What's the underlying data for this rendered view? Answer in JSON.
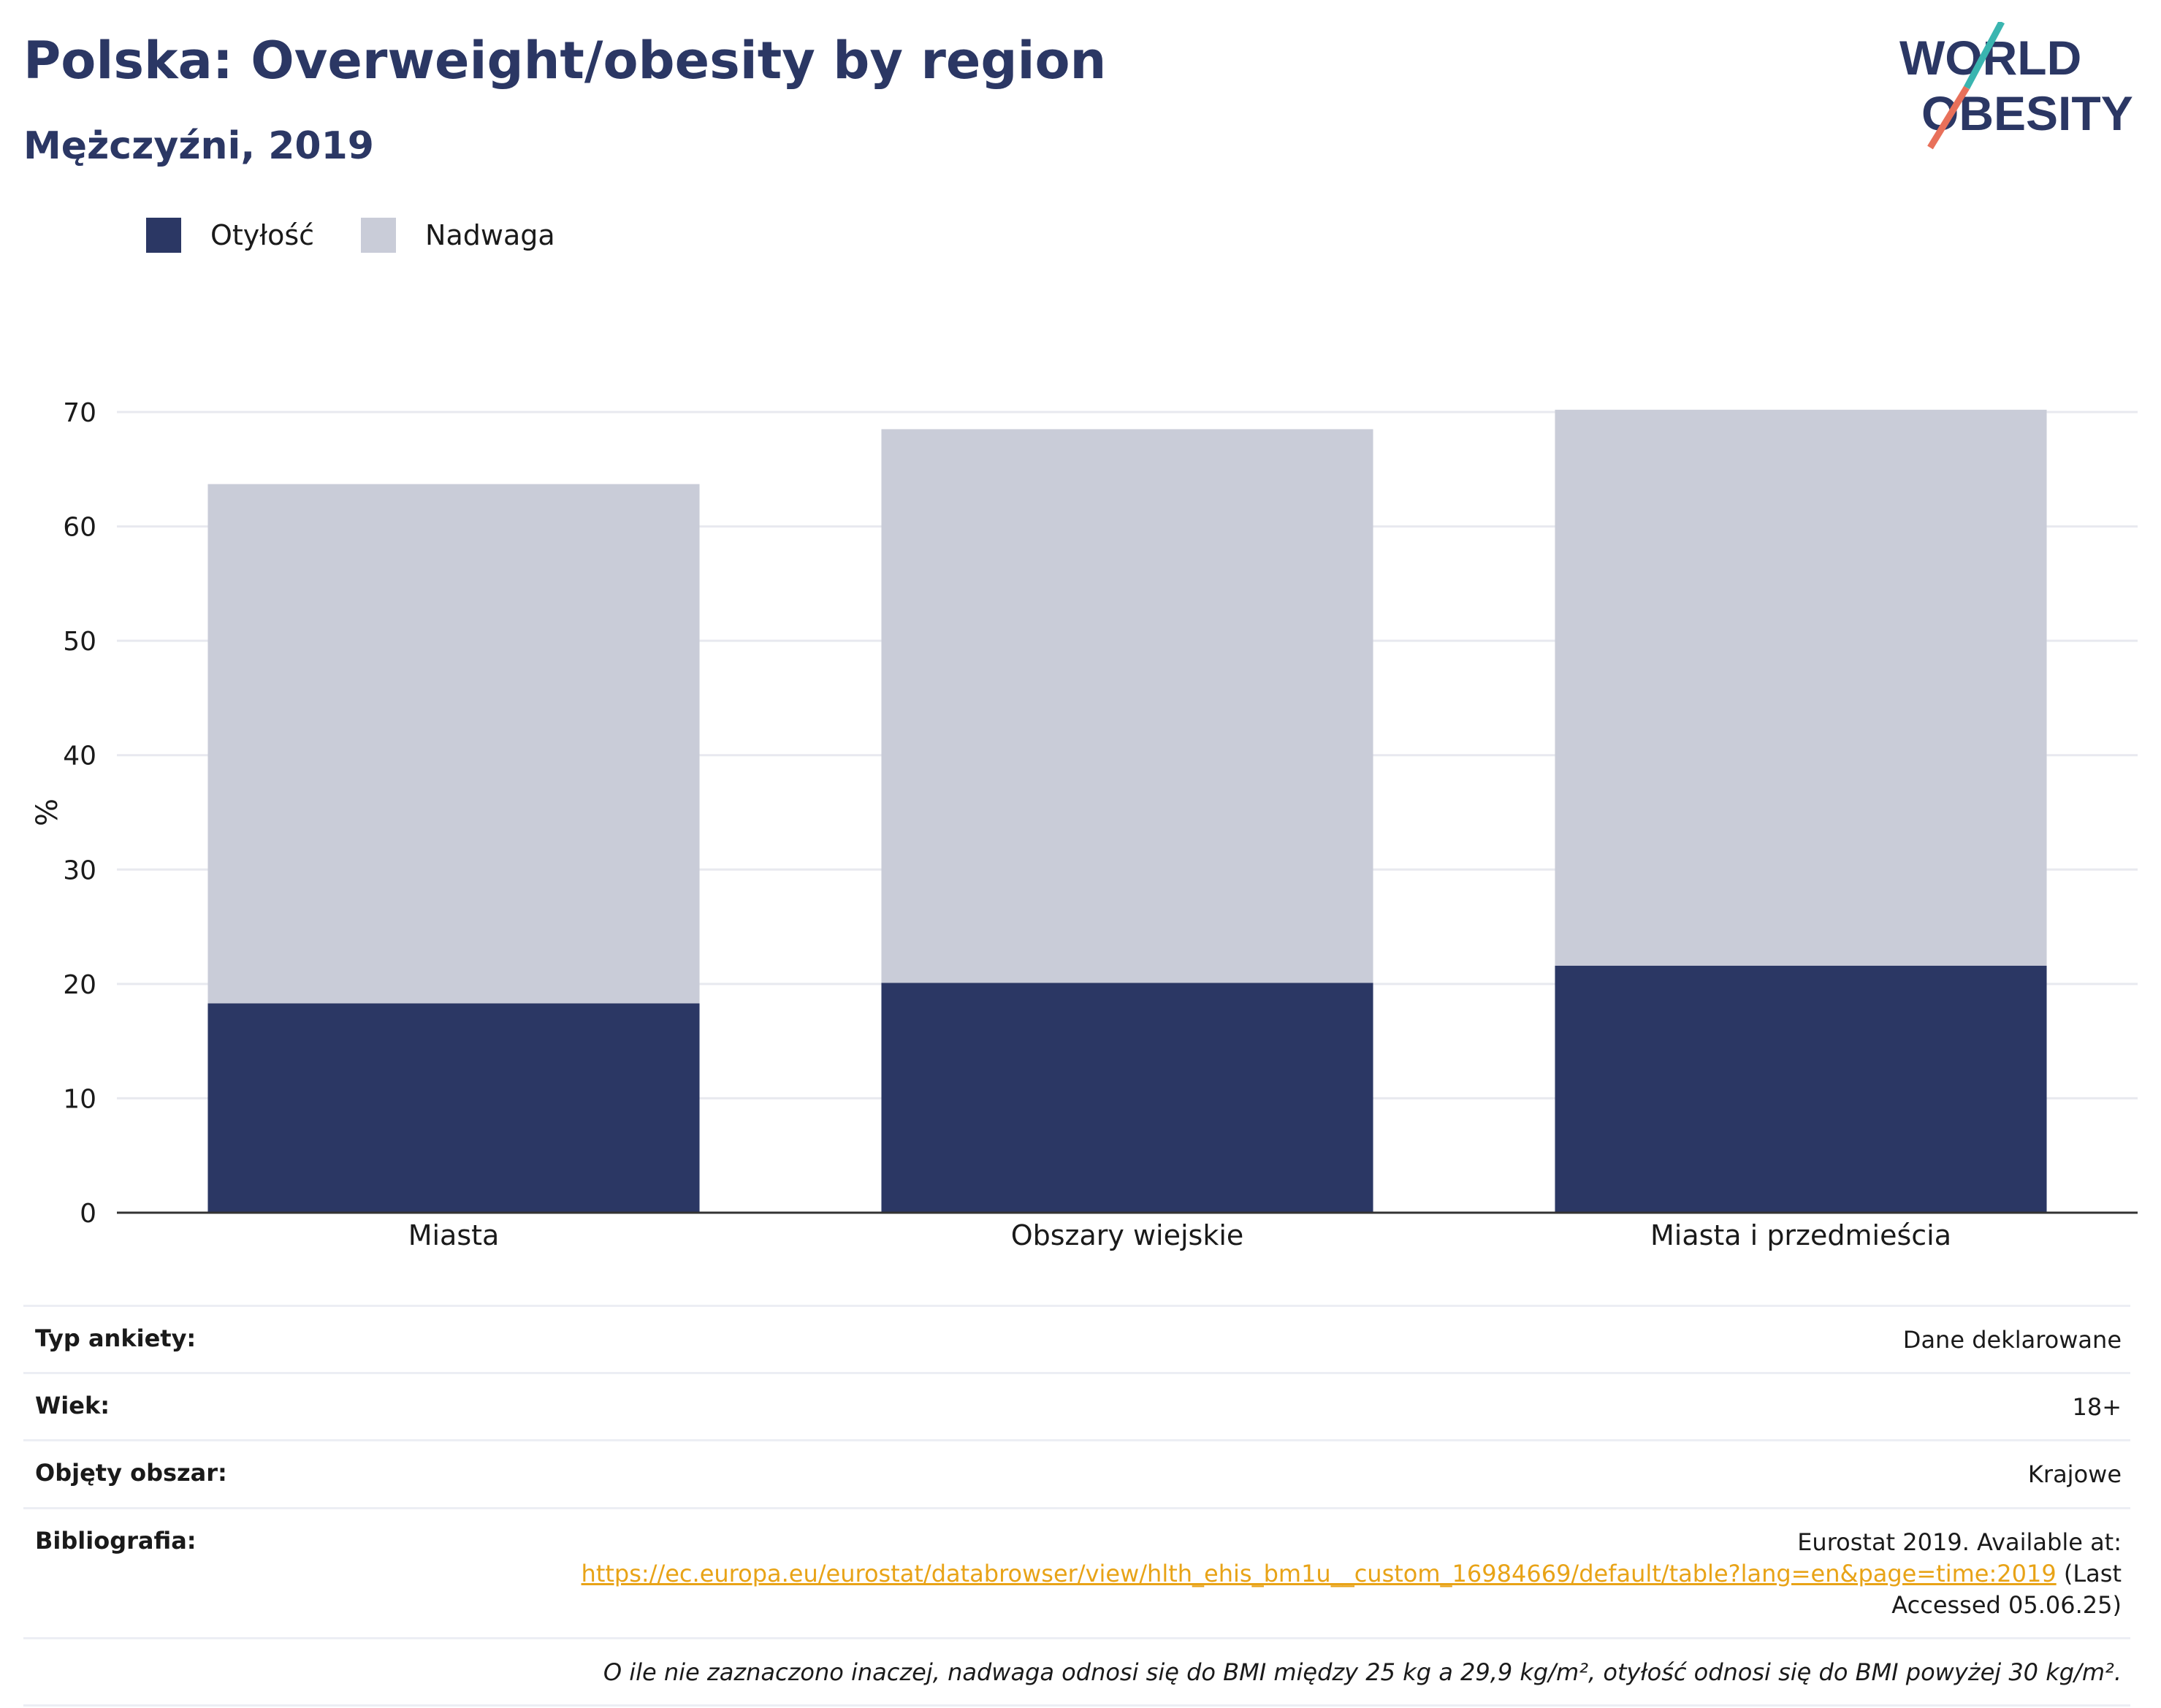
{
  "header": {
    "title": "Polska: Overweight/obesity by region",
    "subtitle": "Mężczyźni, 2019"
  },
  "logo": {
    "line1": "WORLD",
    "line2": "OBESITY"
  },
  "colors": {
    "obesity": "#2b3764",
    "overweight": "#c9ccd8",
    "title": "#2b3764",
    "link": "#e8a317"
  },
  "chart_data": {
    "type": "bar",
    "stacked": true,
    "categories": [
      "Miasta",
      "Obszary wiejskie",
      "Miasta i przedmieścia"
    ],
    "series": [
      {
        "name": "Otyłość",
        "values": [
          18.3,
          20.1,
          21.6
        ]
      },
      {
        "name": "Nadwaga",
        "values": [
          45.4,
          48.4,
          48.6
        ]
      }
    ],
    "ylabel": "%",
    "ylim": [
      0,
      70
    ],
    "yticks": [
      "0",
      "10",
      "20",
      "30",
      "40",
      "50",
      "60",
      "70"
    ],
    "grid": true,
    "legend": "top-left"
  },
  "info": {
    "survey_label": "Typ ankiety:",
    "survey_value": "Dane deklarowane",
    "age_label": "Wiek:",
    "age_value": "18+",
    "area_label": "Objęty obszar:",
    "area_value": "Krajowe",
    "bib_label": "Bibliografia:",
    "bib_prefix": "Eurostat 2019. Available at:",
    "bib_link": "https://ec.europa.eu/eurostat/databrowser/view/hlth_ehis_bm1u__custom_16984669/default/table?lang=en&page=time:2019",
    "bib_suffix_a": "(Last",
    "bib_suffix_b": "Accessed 05.06.25)",
    "note": "O ile nie zaznaczono inaczej, nadwaga odnosi się do BMI między 25 kg a 29,9 kg/m², otyłość odnosi się do BMI powyżej 30 kg/m²."
  }
}
